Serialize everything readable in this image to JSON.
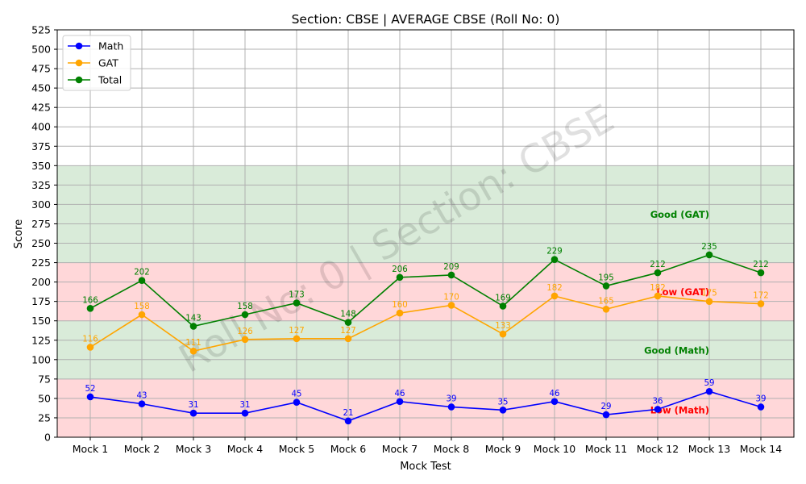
{
  "chart_data": {
    "type": "line",
    "title": "Section: CBSE | AVERAGE CBSE (Roll No: 0)",
    "xlabel": "Mock Test",
    "ylabel": "Score",
    "ylim": [
      0,
      525
    ],
    "yticks": [
      0,
      25,
      50,
      75,
      100,
      125,
      150,
      175,
      200,
      225,
      250,
      275,
      300,
      325,
      350,
      375,
      400,
      425,
      450,
      475,
      500,
      525
    ],
    "grid": true,
    "legend_position": "top-left",
    "categories": [
      "Mock 1",
      "Mock 2",
      "Mock 3",
      "Mock 4",
      "Mock 5",
      "Mock 6",
      "Mock 7",
      "Mock 8",
      "Mock 9",
      "Mock 10",
      "Mock 11",
      "Mock 12",
      "Mock 13",
      "Mock 14"
    ],
    "series": [
      {
        "name": "Math",
        "color": "#0000ff",
        "values": [
          52,
          43,
          31,
          31,
          45,
          21,
          46,
          39,
          35,
          46,
          29,
          36,
          59,
          39
        ]
      },
      {
        "name": "GAT",
        "color": "#ffa500",
        "values": [
          116,
          158,
          111,
          126,
          127,
          127,
          160,
          170,
          133,
          182,
          165,
          182,
          175,
          172
        ]
      },
      {
        "name": "Total",
        "color": "#008000",
        "values": [
          166,
          202,
          143,
          158,
          173,
          148,
          206,
          209,
          169,
          229,
          195,
          212,
          235,
          212
        ]
      }
    ],
    "bands": [
      {
        "from": 0,
        "to": 75,
        "color": "#ffd7d9"
      },
      {
        "from": 75,
        "to": 150,
        "color": "#d9ebd9"
      },
      {
        "from": 150,
        "to": 225,
        "color": "#ffd7d9"
      },
      {
        "from": 225,
        "to": 350,
        "color": "#d9ebd9"
      }
    ],
    "annotations": [
      {
        "text": "Good (GAT)",
        "y": 287,
        "color": "#008000"
      },
      {
        "text": "Low (GAT)",
        "y": 187,
        "color": "#ff0000"
      },
      {
        "text": "Good (Math)",
        "y": 112,
        "color": "#008000"
      },
      {
        "text": "Low (Math)",
        "y": 35,
        "color": "#ff0000"
      }
    ],
    "watermark": "Roll No: 0 | Section: CBSE"
  }
}
